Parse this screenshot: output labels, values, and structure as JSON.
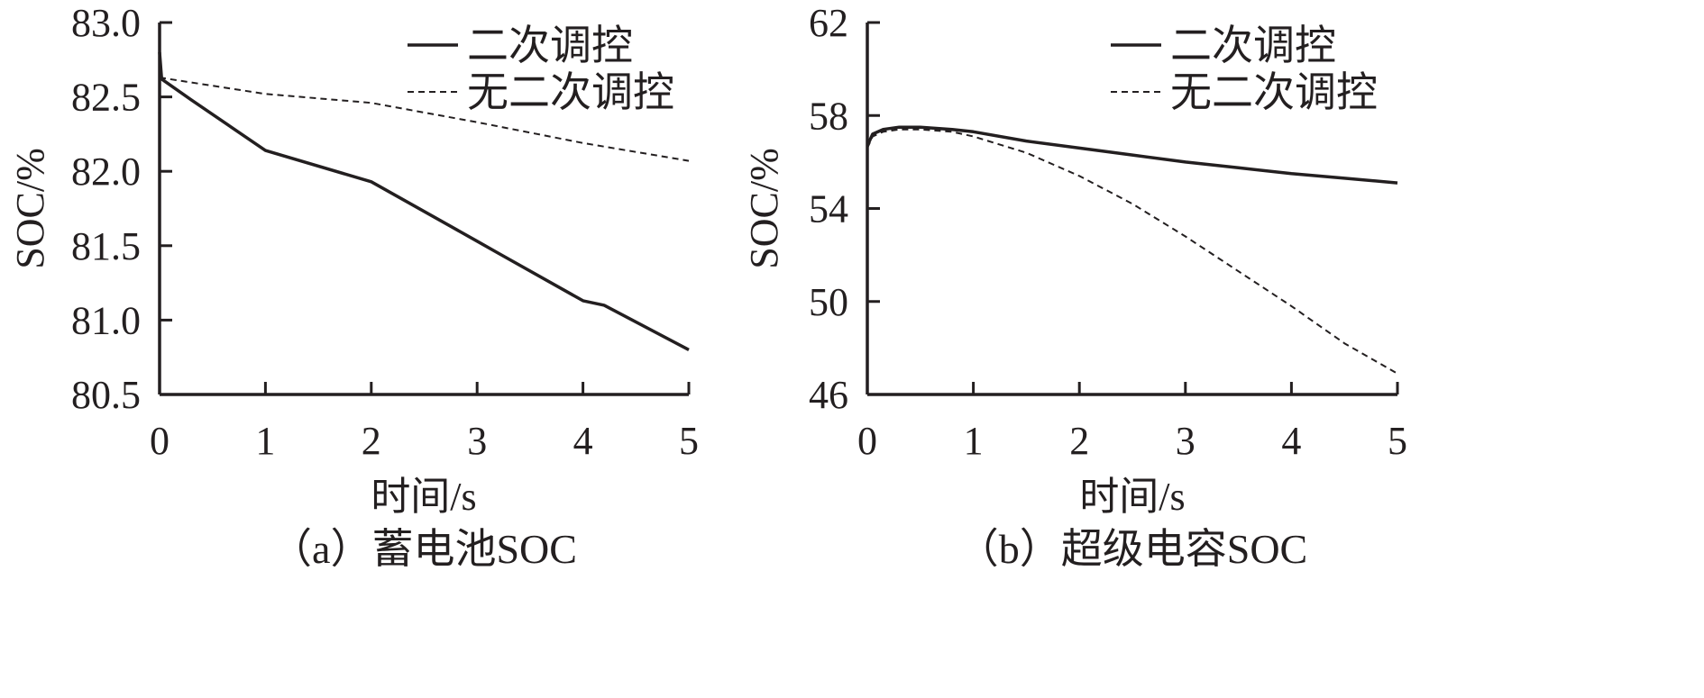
{
  "chart_data": [
    {
      "type": "line",
      "caption": "（a）蓄电池SOC",
      "xlabel": "时间/s",
      "ylabel": "SOC/%",
      "xlim": [
        0,
        5
      ],
      "ylim": [
        80.5,
        83.0
      ],
      "x_ticks": [
        "0",
        "1",
        "2",
        "3",
        "4",
        "5"
      ],
      "y_ticks": [
        "80.5",
        "81.0",
        "81.5",
        "82.0",
        "82.5",
        "83.0"
      ],
      "legend_position": "top-right",
      "series": [
        {
          "name": "二次调控",
          "style": "solid",
          "x": [
            0,
            0.02,
            0.3,
            1.0,
            2.0,
            3.0,
            3.2,
            4.0,
            4.2,
            5.0
          ],
          "y": [
            82.8,
            82.62,
            82.48,
            82.14,
            81.93,
            81.53,
            81.45,
            81.13,
            81.1,
            80.8
          ]
        },
        {
          "name": "无二次调控",
          "style": "dashed",
          "x": [
            0,
            1.0,
            2.0,
            3.0,
            4.0,
            5.0
          ],
          "y": [
            82.63,
            82.52,
            82.46,
            82.33,
            82.19,
            82.07
          ]
        }
      ]
    },
    {
      "type": "line",
      "caption": "（b）超级电容SOC",
      "xlabel": "时间/s",
      "ylabel": "SOC/%",
      "xlim": [
        0,
        5
      ],
      "ylim": [
        46,
        62
      ],
      "x_ticks": [
        "0",
        "1",
        "2",
        "3",
        "4",
        "5"
      ],
      "y_ticks": [
        "46",
        "50",
        "54",
        "58",
        "62"
      ],
      "legend_position": "top-right",
      "series": [
        {
          "name": "二次调控",
          "style": "solid",
          "x": [
            0,
            0.05,
            0.15,
            0.3,
            0.5,
            0.8,
            1.0,
            1.5,
            2.0,
            2.5,
            3.0,
            3.5,
            4.0,
            4.5,
            5.0
          ],
          "y": [
            56.7,
            57.2,
            57.4,
            57.5,
            57.5,
            57.4,
            57.3,
            56.9,
            56.6,
            56.3,
            56.0,
            55.75,
            55.5,
            55.3,
            55.1
          ]
        },
        {
          "name": "无二次调控",
          "style": "dashed",
          "x": [
            0,
            0.05,
            0.15,
            0.3,
            0.5,
            0.8,
            1.0,
            1.5,
            2.0,
            2.5,
            3.0,
            3.5,
            4.0,
            4.5,
            5.0
          ],
          "y": [
            56.6,
            57.1,
            57.3,
            57.4,
            57.4,
            57.3,
            57.1,
            56.4,
            55.4,
            54.2,
            52.8,
            51.3,
            49.8,
            48.2,
            46.9
          ]
        }
      ]
    }
  ]
}
